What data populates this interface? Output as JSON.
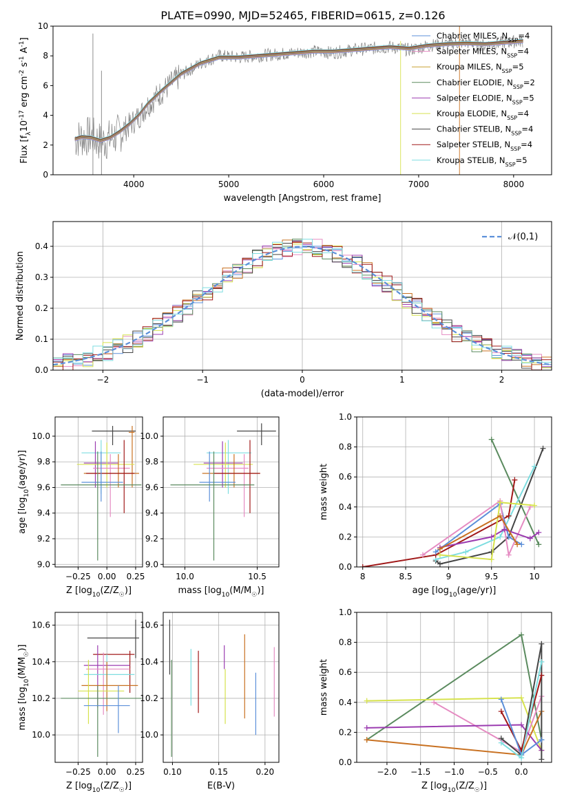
{
  "figure": {
    "title": "PLATE=0990, MJD=52465, FIBERID=0615, z=0.126"
  },
  "chart_data": [
    {
      "id": "spectrum",
      "type": "line",
      "xlabel": "wavelength [Angstrom, rest frame]",
      "ylabel": "Flux [f$_\\lambda$10$^{-17}$ erg cm$^{-2}$ s$^{-1}$ A$^{-1}$]",
      "xlim": [
        3150,
        8400
      ],
      "ylim": [
        0,
        10
      ],
      "xticks": [
        4000,
        5000,
        6000,
        7000,
        8000
      ],
      "yticks": [
        0,
        2,
        4,
        6,
        8,
        10
      ],
      "x": [
        3380,
        3450,
        3550,
        3650,
        3750,
        3850,
        3950,
        4050,
        4150,
        4300,
        4500,
        4700,
        4900,
        5100,
        5300,
        5500,
        5700,
        5900,
        6100,
        6300,
        6500,
        6700,
        6900,
        7100,
        7300,
        7500,
        7700,
        7900,
        8100
      ],
      "data_y": [
        2.4,
        2.5,
        2.6,
        2.2,
        2.4,
        2.8,
        3.3,
        3.9,
        4.7,
        5.6,
        6.7,
        7.5,
        8.0,
        7.9,
        8.0,
        8.1,
        8.2,
        8.3,
        8.2,
        8.4,
        8.5,
        8.6,
        8.4,
        8.7,
        8.8,
        8.9,
        8.7,
        8.9,
        9.0
      ],
      "model_y": [
        2.4,
        2.55,
        2.5,
        2.3,
        2.5,
        2.9,
        3.4,
        4.0,
        4.8,
        5.7,
        6.8,
        7.5,
        7.9,
        7.9,
        8.0,
        8.1,
        8.2,
        8.3,
        8.3,
        8.4,
        8.5,
        8.6,
        8.5,
        8.7,
        8.8,
        8.85,
        8.8,
        8.9,
        9.0
      ],
      "series": [
        {
          "name": "Chabrier MILES, N$_{SSP}$=4",
          "color": "#5b8fd9"
        },
        {
          "name": "Salpeter MILES, N$_{SSP}$=4",
          "color": "#e58bc2"
        },
        {
          "name": "Kroupa MILES, N$_{SSP}$=5",
          "color": "#c8a030"
        },
        {
          "name": "Chabrier ELODIE, N$_{SSP}$=2",
          "color": "#5a8a5e"
        },
        {
          "name": "Salpeter ELODIE, N$_{SSP}$=5",
          "color": "#9b3bb0"
        },
        {
          "name": "Kroupa ELODIE, N$_{SSP}$=4",
          "color": "#d6e24c"
        },
        {
          "name": "Chabrier STELIB, N$_{SSP}$=4",
          "color": "#444444"
        },
        {
          "name": "Salpeter STELIB, N$_{SSP}$=4",
          "color": "#a01818"
        },
        {
          "name": "Kroupa STELIB, N$_{SSP}$=5",
          "color": "#7ddde0"
        }
      ]
    },
    {
      "id": "residuals",
      "type": "line",
      "xlabel": "(data-model)/error",
      "ylabel": "Normed distribution",
      "xlim": [
        -2.5,
        2.5
      ],
      "ylim": [
        0,
        0.48
      ],
      "xticks": [
        -2,
        -1,
        0,
        1,
        2
      ],
      "yticks": [
        0.0,
        0.1,
        0.2,
        0.3,
        0.4
      ],
      "grid": true,
      "legend_position": "upper right",
      "legend_label": "$\\mathcal{N}(0,1)$",
      "gaussian_mean": 0,
      "gaussian_sigma": 1
    },
    {
      "id": "age-vs-Z",
      "type": "scatter",
      "xlabel": "Z [log$_{10}$(Z/Z$_\\odot$)]",
      "ylabel": "age  [log$_{10}$(age/yr)]",
      "xlim": [
        -0.45,
        0.31
      ],
      "ylim": [
        8.98,
        10.15
      ],
      "xticks": [
        -0.25,
        0.0,
        0.25
      ],
      "xticklabels": [
        "−0.25",
        "0.00",
        "0.25"
      ],
      "yticks": [
        9.0,
        9.2,
        9.4,
        9.6,
        9.8,
        10.0
      ],
      "grid": true,
      "points": [
        {
          "x": 0.05,
          "y": 10.04,
          "xlo": -0.13,
          "xhi": 0.25,
          "ylo": 9.93,
          "yhi": 10.08,
          "color": "#444444"
        },
        {
          "x": 0.22,
          "y": 10.03,
          "xlo": 0.19,
          "xhi": 0.24,
          "ylo": 9.6,
          "yhi": 10.08,
          "color": "#c87020"
        },
        {
          "x": -0.05,
          "y": 9.87,
          "xlo": -0.22,
          "xhi": 0.12,
          "ylo": 9.55,
          "yhi": 9.97,
          "color": "#7ddde0"
        },
        {
          "x": -0.1,
          "y": 9.79,
          "xlo": -0.2,
          "xhi": 0.1,
          "ylo": 9.6,
          "yhi": 9.96,
          "color": "#9b3bb0"
        },
        {
          "x": 0.0,
          "y": 9.78,
          "xlo": -0.26,
          "xhi": 0.24,
          "ylo": 9.6,
          "yhi": 9.95,
          "color": "#d6e24c"
        },
        {
          "x": 0.03,
          "y": 9.75,
          "xlo": -0.12,
          "xhi": 0.2,
          "ylo": 9.37,
          "yhi": 9.86,
          "color": "#e58bc2"
        },
        {
          "x": 0.1,
          "y": 9.71,
          "xlo": -0.2,
          "xhi": 0.28,
          "ylo": 9.6,
          "yhi": 9.86,
          "color": "#c87020"
        },
        {
          "x": 0.15,
          "y": 9.71,
          "xlo": -0.18,
          "xhi": 0.24,
          "ylo": 9.4,
          "yhi": 9.97,
          "color": "#a01818"
        },
        {
          "x": -0.05,
          "y": 9.64,
          "xlo": -0.22,
          "xhi": 0.14,
          "ylo": 9.49,
          "yhi": 9.88,
          "color": "#5b8fd9"
        },
        {
          "x": -0.08,
          "y": 9.62,
          "xlo": -0.4,
          "xhi": 0.3,
          "ylo": 9.03,
          "yhi": 9.88,
          "color": "#5a8a5e"
        }
      ]
    },
    {
      "id": "age-vs-mass",
      "type": "scatter",
      "xlabel": "mass [log$_{10}$(M/M$_\\odot$)]",
      "ylabel": "",
      "xlim": [
        9.85,
        10.65
      ],
      "ylim": [
        8.98,
        10.15
      ],
      "xticks": [
        10.0,
        10.5
      ],
      "xticklabels": [
        "10.0",
        "10.5"
      ],
      "yticks": [
        9.0,
        9.2,
        9.4,
        9.6,
        9.8,
        10.0
      ],
      "grid": true,
      "points": [
        {
          "x": 10.53,
          "y": 10.04,
          "xlo": 10.36,
          "xhi": 10.63,
          "ylo": 9.93,
          "yhi": 10.1,
          "color": "#444444"
        },
        {
          "x": 10.3,
          "y": 9.87,
          "xlo": 10.15,
          "xhi": 10.46,
          "ylo": 9.55,
          "yhi": 9.97,
          "color": "#7ddde0"
        },
        {
          "x": 10.26,
          "y": 9.79,
          "xlo": 10.13,
          "xhi": 10.4,
          "ylo": 9.6,
          "yhi": 9.96,
          "color": "#9b3bb0"
        },
        {
          "x": 10.28,
          "y": 9.78,
          "xlo": 10.06,
          "xhi": 10.47,
          "ylo": 9.6,
          "yhi": 9.95,
          "color": "#d6e24c"
        },
        {
          "x": 10.41,
          "y": 9.75,
          "xlo": 10.15,
          "xhi": 10.44,
          "ylo": 9.37,
          "yhi": 9.86,
          "color": "#e58bc2"
        },
        {
          "x": 10.34,
          "y": 9.71,
          "xlo": 10.12,
          "xhi": 10.52,
          "ylo": 9.6,
          "yhi": 9.86,
          "color": "#c87020"
        },
        {
          "x": 10.45,
          "y": 9.71,
          "xlo": 10.2,
          "xhi": 10.52,
          "ylo": 9.4,
          "yhi": 9.97,
          "color": "#a01818"
        },
        {
          "x": 10.17,
          "y": 9.64,
          "xlo": 10.1,
          "xhi": 10.35,
          "ylo": 9.49,
          "yhi": 9.88,
          "color": "#5b8fd9"
        },
        {
          "x": 10.2,
          "y": 9.62,
          "xlo": 9.9,
          "xhi": 10.48,
          "ylo": 9.03,
          "yhi": 9.88,
          "color": "#5a8a5e"
        }
      ]
    },
    {
      "id": "weight-vs-age",
      "type": "line",
      "xlabel": "age  [log$_{10}$(age/yr)]",
      "ylabel": "mass weight",
      "xlim": [
        7.93,
        10.2
      ],
      "ylim": [
        0,
        1.0
      ],
      "xticks": [
        8.0,
        8.5,
        9.0,
        9.5,
        10.0
      ],
      "yticks": [
        0.0,
        0.2,
        0.4,
        0.6,
        0.8,
        1.0
      ],
      "grid": true,
      "series": [
        {
          "color": "#5a8a5e",
          "x": [
            9.5,
            10.05
          ],
          "y": [
            0.85,
            0.15
          ]
        },
        {
          "color": "#444444",
          "x": [
            8.85,
            8.9,
            9.5,
            9.7,
            10.1
          ],
          "y": [
            0.04,
            0.02,
            0.1,
            0.2,
            0.79
          ]
        },
        {
          "color": "#7ddde0",
          "x": [
            8.85,
            9.2,
            9.6,
            10.0
          ],
          "y": [
            0.05,
            0.1,
            0.2,
            0.67
          ]
        },
        {
          "color": "#a01818",
          "x": [
            8.0,
            8.85,
            9.7,
            9.77
          ],
          "y": [
            0.0,
            0.08,
            0.34,
            0.58
          ]
        },
        {
          "color": "#5b8fd9",
          "x": [
            8.85,
            9.6,
            9.7,
            9.85
          ],
          "y": [
            0.1,
            0.42,
            0.2,
            0.15
          ]
        },
        {
          "color": "#e58bc2",
          "x": [
            8.7,
            9.6,
            9.7,
            9.95
          ],
          "y": [
            0.08,
            0.44,
            0.08,
            0.4
          ]
        },
        {
          "color": "#9b3bb0",
          "x": [
            8.9,
            9.5,
            9.65,
            9.95,
            10.05
          ],
          "y": [
            0.13,
            0.2,
            0.25,
            0.19,
            0.23
          ]
        },
        {
          "color": "#d6e24c",
          "x": [
            8.9,
            9.5,
            9.6,
            10.0
          ],
          "y": [
            0.08,
            0.05,
            0.43,
            0.41
          ]
        },
        {
          "color": "#c87020",
          "x": [
            8.9,
            9.6,
            9.8
          ],
          "y": [
            0.12,
            0.34,
            0.15
          ]
        }
      ]
    },
    {
      "id": "mass-vs-Z",
      "type": "scatter",
      "xlabel": "Z [log$_{10}$(Z/Z$_\\odot$)]",
      "ylabel": "mass [log$_{10}$(M/M$_\\odot$)]",
      "xlim": [
        -0.45,
        0.31
      ],
      "ylim": [
        9.85,
        10.67
      ],
      "xticks": [
        -0.25,
        0.0,
        0.25
      ],
      "xticklabels": [
        "−0.25",
        "0.00",
        "0.25"
      ],
      "yticks": [
        10.0,
        10.2,
        10.4,
        10.6
      ],
      "grid": true,
      "points": [
        {
          "x": 0.25,
          "y": 10.53,
          "xlo": -0.17,
          "xhi": 0.28,
          "ylo": 10.42,
          "yhi": 10.63,
          "color": "#444444"
        },
        {
          "x": 0.2,
          "y": 10.44,
          "xlo": -0.12,
          "xhi": 0.24,
          "ylo": 10.23,
          "yhi": 10.46,
          "color": "#a01818"
        },
        {
          "x": -0.08,
          "y": 10.38,
          "xlo": -0.2,
          "xhi": 0.2,
          "ylo": 10.15,
          "yhi": 10.49,
          "color": "#9b3bb0"
        },
        {
          "x": -0.03,
          "y": 10.36,
          "xlo": -0.18,
          "xhi": 0.2,
          "ylo": 10.11,
          "yhi": 10.45,
          "color": "#e58bc2"
        },
        {
          "x": 0.0,
          "y": 10.33,
          "xlo": -0.2,
          "xhi": 0.24,
          "ylo": 10.19,
          "yhi": 10.44,
          "color": "#7ddde0"
        },
        {
          "x": 0.0,
          "y": 10.27,
          "xlo": -0.22,
          "xhi": 0.27,
          "ylo": 10.13,
          "yhi": 10.4,
          "color": "#c87020"
        },
        {
          "x": -0.16,
          "y": 10.24,
          "xlo": -0.25,
          "xhi": 0.15,
          "ylo": 10.06,
          "yhi": 10.41,
          "color": "#d6e24c"
        },
        {
          "x": -0.08,
          "y": 10.2,
          "xlo": -0.4,
          "xhi": 0.3,
          "ylo": 9.88,
          "yhi": 10.27,
          "color": "#5a8a5e"
        },
        {
          "x": 0.1,
          "y": 10.16,
          "xlo": -0.2,
          "xhi": 0.2,
          "ylo": 10.01,
          "yhi": 10.27,
          "color": "#5b8fd9"
        }
      ]
    },
    {
      "id": "mass-vs-ebv",
      "type": "scatter",
      "xlabel": "E(B-V)",
      "ylabel": "",
      "xlim": [
        0.09,
        0.215
      ],
      "ylim": [
        9.85,
        10.67
      ],
      "xticks": [
        0.1,
        0.15,
        0.2
      ],
      "xticklabels": [
        "0.10",
        "0.15",
        "0.20"
      ],
      "yticks": [
        10.0,
        10.2,
        10.4,
        10.6
      ],
      "grid": true,
      "points": [
        {
          "x": 0.097,
          "ylo": 10.33,
          "yhi": 10.63,
          "color": "#444444"
        },
        {
          "x": 0.099,
          "ylo": 9.88,
          "yhi": 10.41,
          "color": "#5a8a5e"
        },
        {
          "x": 0.12,
          "ylo": 10.16,
          "yhi": 10.47,
          "color": "#7ddde0"
        },
        {
          "x": 0.128,
          "ylo": 10.12,
          "yhi": 10.46,
          "color": "#a01818"
        },
        {
          "x": 0.156,
          "ylo": 10.36,
          "yhi": 10.49,
          "color": "#9b3bb0"
        },
        {
          "x": 0.157,
          "ylo": 10.06,
          "yhi": 10.36,
          "color": "#d6e24c"
        },
        {
          "x": 0.178,
          "ylo": 10.09,
          "yhi": 10.55,
          "color": "#c87020"
        },
        {
          "x": 0.19,
          "ylo": 10.0,
          "yhi": 10.34,
          "color": "#5b8fd9"
        },
        {
          "x": 0.21,
          "ylo": 10.1,
          "yhi": 10.48,
          "color": "#e58bc2"
        }
      ]
    },
    {
      "id": "weight-vs-Z",
      "type": "line",
      "xlabel": "Z [log$_{10}$(Z/Z$_\\odot$)]",
      "ylabel": "mass weight",
      "xlim": [
        -2.45,
        0.45
      ],
      "ylim": [
        0,
        1.0
      ],
      "xticks": [
        -2.0,
        -1.5,
        -1.0,
        -0.5,
        0.0
      ],
      "xticklabels": [
        "−2.0",
        "−1.5",
        "−1.0",
        "−0.5",
        "0.0"
      ],
      "yticks": [
        0.0,
        0.2,
        0.4,
        0.6,
        0.8,
        1.0
      ],
      "grid": true,
      "series": [
        {
          "color": "#5a8a5e",
          "x": [
            -2.3,
            0.0,
            0.3
          ],
          "y": [
            0.15,
            0.85,
            0.15
          ]
        },
        {
          "color": "#d6e24c",
          "x": [
            -2.3,
            0.0,
            0.3
          ],
          "y": [
            0.41,
            0.43,
            0.08
          ]
        },
        {
          "color": "#e58bc2",
          "x": [
            -1.3,
            0.0,
            0.3
          ],
          "y": [
            0.4,
            0.07,
            0.44
          ]
        },
        {
          "color": "#9b3bb0",
          "x": [
            -2.3,
            0.0,
            0.3
          ],
          "y": [
            0.23,
            0.25,
            0.08
          ]
        },
        {
          "color": "#c87020",
          "x": [
            -2.3,
            0.0,
            0.3
          ],
          "y": [
            0.15,
            0.05,
            0.34
          ]
        },
        {
          "color": "#444444",
          "x": [
            -0.3,
            0.0,
            0.3,
            0.3
          ],
          "y": [
            0.16,
            0.05,
            0.79,
            0.02
          ]
        },
        {
          "color": "#a01818",
          "x": [
            -0.3,
            0.0,
            0.3
          ],
          "y": [
            0.34,
            0.08,
            0.58
          ]
        },
        {
          "color": "#5b8fd9",
          "x": [
            -0.3,
            0.0,
            0.3
          ],
          "y": [
            0.42,
            0.05,
            0.15
          ]
        },
        {
          "color": "#7ddde0",
          "x": [
            -0.3,
            0.0,
            0.3
          ],
          "y": [
            0.13,
            0.03,
            0.67
          ]
        }
      ]
    }
  ]
}
